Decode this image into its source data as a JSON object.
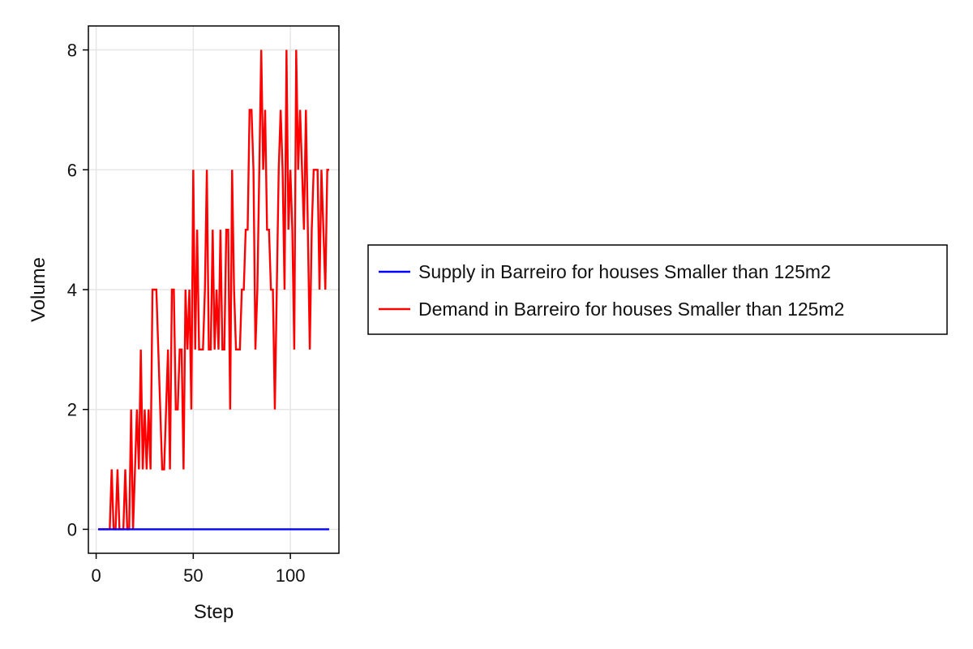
{
  "chart_data": {
    "type": "line",
    "title": "",
    "xlabel": "Step",
    "ylabel": "Volume",
    "xlim": [
      -4,
      125
    ],
    "ylim": [
      -0.4,
      8.4
    ],
    "xticks": [
      0,
      50,
      100
    ],
    "xtick_labels": [
      "0",
      "50",
      "100"
    ],
    "yticks": [
      0,
      2,
      4,
      6,
      8
    ],
    "ytick_labels": [
      "0",
      "2",
      "4",
      "6",
      "8"
    ],
    "grid": true,
    "legend_position": "right",
    "series": [
      {
        "name": "Supply in Barreiro for houses Smaller than 125m2",
        "color": "#0000ff",
        "x": [
          1,
          120
        ],
        "y": [
          0,
          0
        ]
      },
      {
        "name": "Demand in Barreiro for houses Smaller than 125m2",
        "color": "#ff0000",
        "x": [
          1,
          2,
          3,
          4,
          5,
          6,
          7,
          8,
          9,
          10,
          11,
          12,
          13,
          14,
          15,
          16,
          17,
          18,
          19,
          20,
          21,
          22,
          23,
          24,
          25,
          26,
          27,
          28,
          29,
          30,
          31,
          32,
          33,
          34,
          35,
          36,
          37,
          38,
          39,
          40,
          41,
          42,
          43,
          44,
          45,
          46,
          47,
          48,
          49,
          50,
          51,
          52,
          53,
          54,
          55,
          56,
          57,
          58,
          59,
          60,
          61,
          62,
          63,
          64,
          65,
          66,
          67,
          68,
          69,
          70,
          71,
          72,
          73,
          74,
          75,
          76,
          77,
          78,
          79,
          80,
          81,
          82,
          83,
          84,
          85,
          86,
          87,
          88,
          89,
          90,
          91,
          92,
          93,
          94,
          95,
          96,
          97,
          98,
          99,
          100,
          101,
          102,
          103,
          104,
          105,
          106,
          107,
          108,
          109,
          110,
          111,
          112,
          113,
          114,
          115,
          116,
          117,
          118,
          119,
          120
        ],
        "y": [
          0,
          0,
          0,
          0,
          0,
          0,
          0,
          1,
          0,
          0,
          1,
          0,
          0,
          0,
          1,
          0,
          0,
          2,
          0,
          1,
          2,
          1,
          3,
          1,
          2,
          1,
          2,
          1,
          4,
          4,
          4,
          3,
          2,
          1,
          1,
          2,
          3,
          1,
          4,
          4,
          2,
          2,
          3,
          3,
          1,
          4,
          3,
          4,
          2,
          6,
          3,
          5,
          3,
          3,
          3,
          4,
          6,
          3,
          3,
          5,
          3,
          4,
          3,
          5,
          3,
          3,
          5,
          5,
          2,
          6,
          4,
          3,
          3,
          3,
          4,
          4,
          5,
          5,
          7,
          7,
          6,
          3,
          4,
          6,
          8,
          6,
          7,
          5,
          5,
          4,
          4,
          2,
          4,
          6,
          7,
          6,
          4,
          8,
          5,
          6,
          5,
          3,
          8,
          6,
          7,
          6,
          5,
          7,
          5,
          3,
          5,
          6,
          6,
          6,
          4,
          6,
          5,
          4,
          6,
          6
        ]
      }
    ]
  }
}
